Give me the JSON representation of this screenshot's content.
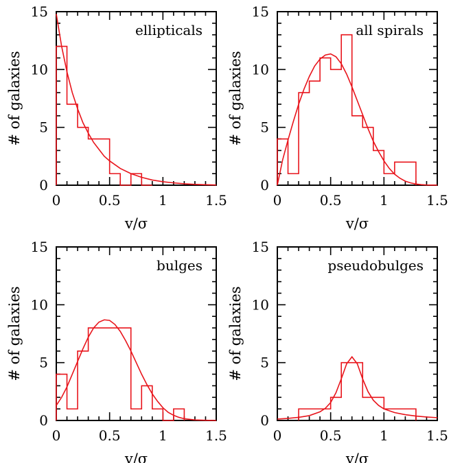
{
  "figure": {
    "xlabel": "v/σ",
    "ylabel": "# of galaxies"
  },
  "style": {
    "line_color": "#e8141b",
    "axis_color": "#000000"
  },
  "chart_data": [
    {
      "type": "histogram",
      "label": "ellipticals",
      "xlim": [
        0,
        1.5
      ],
      "ylim": [
        0,
        15
      ],
      "x_ticks": [
        "0",
        "0.5",
        "1",
        "1.5"
      ],
      "y_ticks": [
        "0",
        "5",
        "10",
        "15"
      ],
      "bin_edges": [
        0,
        0.1,
        0.2,
        0.3,
        0.5,
        0.6,
        0.7,
        0.8,
        0.9
      ],
      "counts": [
        12,
        7,
        5,
        4,
        1,
        0,
        1,
        0
      ],
      "fit": {
        "x": [
          0,
          0.05,
          0.1,
          0.15,
          0.2,
          0.25,
          0.3,
          0.35,
          0.4,
          0.45,
          0.5,
          0.6,
          0.7,
          0.8,
          0.9,
          1.0,
          1.1,
          1.2,
          1.3,
          1.4,
          1.5
        ],
        "y": [
          14.8,
          12.0,
          9.8,
          8.0,
          6.6,
          5.4,
          4.5,
          3.7,
          3.1,
          2.5,
          2.1,
          1.45,
          1.0,
          0.68,
          0.45,
          0.3,
          0.2,
          0.12,
          0.07,
          0.04,
          0.02
        ]
      }
    },
    {
      "type": "histogram",
      "label": "all spirals",
      "xlim": [
        0,
        1.5
      ],
      "ylim": [
        0,
        15
      ],
      "x_ticks": [
        "0",
        "0.5",
        "1",
        "1.5"
      ],
      "y_ticks": [
        "0",
        "5",
        "10",
        "15"
      ],
      "bin_edges": [
        0,
        0.1,
        0.2,
        0.3,
        0.4,
        0.5,
        0.6,
        0.7,
        0.8,
        0.9,
        1.0,
        1.1,
        1.3
      ],
      "counts": [
        4,
        1,
        8,
        9,
        11,
        10,
        13,
        6,
        5,
        3,
        1,
        2
      ],
      "fit": {
        "x": [
          0,
          0.05,
          0.1,
          0.15,
          0.2,
          0.25,
          0.3,
          0.35,
          0.4,
          0.45,
          0.5,
          0.55,
          0.6,
          0.65,
          0.7,
          0.75,
          0.8,
          0.85,
          0.9,
          0.95,
          1.0,
          1.05,
          1.1,
          1.15,
          1.2,
          1.25,
          1.3,
          1.35,
          1.4,
          1.5
        ],
        "y": [
          0,
          2.2,
          3.9,
          5.5,
          7.0,
          8.3,
          9.4,
          10.3,
          10.9,
          11.25,
          11.35,
          11.1,
          10.5,
          9.6,
          8.5,
          7.3,
          6.1,
          4.9,
          3.8,
          2.9,
          2.1,
          1.45,
          0.95,
          0.6,
          0.35,
          0.2,
          0.1,
          0.05,
          0.02,
          0
        ]
      }
    },
    {
      "type": "histogram",
      "label": "bulges",
      "xlim": [
        0,
        1.5
      ],
      "ylim": [
        0,
        15
      ],
      "x_ticks": [
        "0",
        "0.5",
        "1",
        "1.5"
      ],
      "y_ticks": [
        "0",
        "5",
        "10",
        "15"
      ],
      "bin_edges": [
        0,
        0.1,
        0.2,
        0.3,
        0.4,
        0.5,
        0.6,
        0.7,
        0.8,
        0.9,
        1.0,
        1.1,
        1.2
      ],
      "counts": [
        4,
        1,
        6,
        8,
        8,
        8,
        8,
        1,
        3,
        1,
        0,
        1
      ],
      "fit": {
        "x": [
          0,
          0.05,
          0.1,
          0.15,
          0.2,
          0.25,
          0.3,
          0.35,
          0.4,
          0.45,
          0.5,
          0.55,
          0.6,
          0.65,
          0.7,
          0.75,
          0.8,
          0.85,
          0.9,
          0.95,
          1.0,
          1.05,
          1.1,
          1.15,
          1.2,
          1.3,
          1.4,
          1.5
        ],
        "y": [
          1.3,
          2.0,
          2.9,
          4.0,
          5.1,
          6.2,
          7.2,
          8.0,
          8.5,
          8.7,
          8.65,
          8.3,
          7.7,
          6.9,
          6.0,
          5.0,
          4.0,
          3.1,
          2.3,
          1.65,
          1.1,
          0.7,
          0.45,
          0.27,
          0.15,
          0.05,
          0.02,
          0
        ]
      }
    },
    {
      "type": "histogram",
      "label": "pseudobulges",
      "xlim": [
        0,
        1.5
      ],
      "ylim": [
        0,
        15
      ],
      "x_ticks": [
        "0",
        "0.5",
        "1",
        "1.5"
      ],
      "y_ticks": [
        "0",
        "5",
        "10",
        "15"
      ],
      "bin_edges": [
        0.2,
        0.5,
        0.6,
        0.7,
        0.8,
        1.0,
        1.3
      ],
      "counts": [
        1,
        2,
        5,
        5,
        2,
        1
      ],
      "fit": {
        "x": [
          0,
          0.1,
          0.2,
          0.3,
          0.4,
          0.45,
          0.5,
          0.55,
          0.6,
          0.65,
          0.7,
          0.75,
          0.8,
          0.85,
          0.9,
          0.95,
          1.0,
          1.1,
          1.2,
          1.3,
          1.4,
          1.5
        ],
        "y": [
          0.12,
          0.18,
          0.27,
          0.42,
          0.75,
          1.05,
          1.55,
          2.4,
          3.6,
          4.9,
          5.5,
          4.9,
          3.6,
          2.5,
          1.75,
          1.3,
          1.0,
          0.68,
          0.5,
          0.38,
          0.3,
          0.24
        ]
      }
    }
  ]
}
